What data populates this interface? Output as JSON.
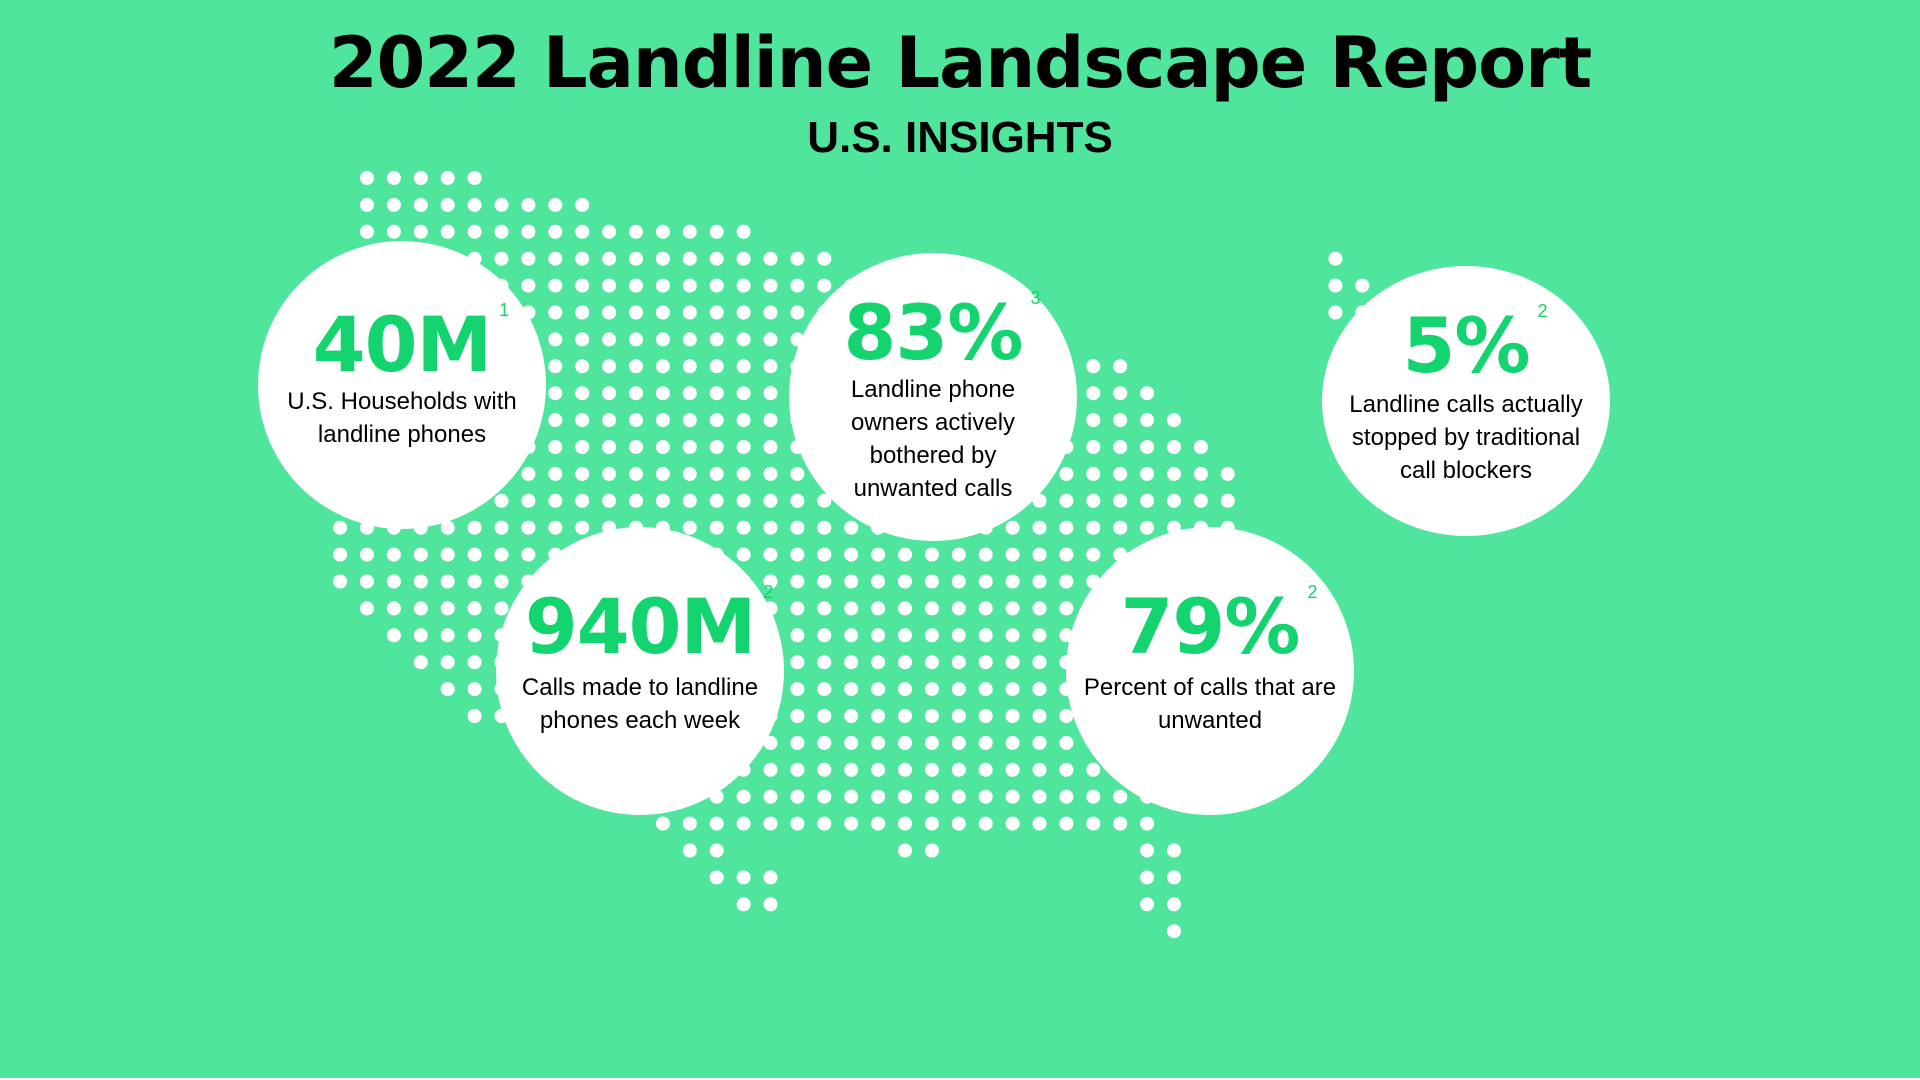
{
  "header": {
    "title": "2022 Landline Landscape Report",
    "subtitle": "U.S. INSIGHTS"
  },
  "colors": {
    "background": "#50E59D",
    "accent": "#13D46F",
    "dot": "#FFFFFF",
    "circle": "#FFFFFF",
    "text": "#000000"
  },
  "dot_map": {
    "icon": "united-states-dot-map"
  },
  "stats": [
    {
      "value": "40M",
      "ref": "1",
      "label": "U.S. Households with landline phones"
    },
    {
      "value": "83%",
      "ref": "3",
      "label": "Landline phone owners actively bothered by unwanted calls"
    },
    {
      "value": "5%",
      "ref": "2",
      "label": "Landline calls actually stopped by traditional call blockers"
    },
    {
      "value": "940M",
      "ref": "2",
      "label": "Calls made to landline phones each week"
    },
    {
      "value": "79%",
      "ref": "2",
      "label": "Percent of calls that are unwanted"
    }
  ]
}
